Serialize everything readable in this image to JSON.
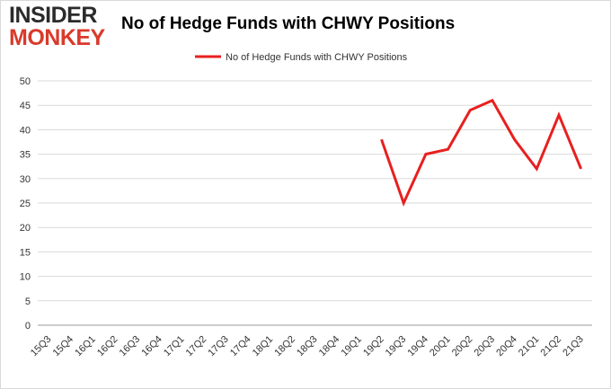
{
  "logo": {
    "line1": "INSIDER",
    "line2": "MONKEY"
  },
  "colors": {
    "line": "#e8201f",
    "grid": "#d9d9d9",
    "axis": "#999999"
  },
  "chart_data": {
    "type": "line",
    "title": "No of Hedge Funds with CHWY Positions",
    "xlabel": "",
    "ylabel": "",
    "legend_position": "top-center",
    "grid": true,
    "ylim": [
      0,
      50
    ],
    "yticks": [
      0,
      5,
      10,
      15,
      20,
      25,
      30,
      35,
      40,
      45,
      50
    ],
    "categories": [
      "15Q3",
      "15Q4",
      "16Q1",
      "16Q2",
      "16Q3",
      "16Q4",
      "17Q1",
      "17Q2",
      "17Q3",
      "17Q4",
      "18Q1",
      "18Q2",
      "18Q3",
      "18Q4",
      "19Q1",
      "19Q2",
      "19Q3",
      "19Q4",
      "20Q1",
      "20Q2",
      "20Q3",
      "20Q4",
      "21Q1",
      "21Q2",
      "21Q3"
    ],
    "series": [
      {
        "name": "No of Hedge Funds with CHWY Positions",
        "values": [
          null,
          null,
          null,
          null,
          null,
          null,
          null,
          null,
          null,
          null,
          null,
          null,
          null,
          null,
          null,
          38,
          25,
          35,
          36,
          44,
          46,
          38,
          32,
          43,
          32
        ]
      }
    ]
  }
}
